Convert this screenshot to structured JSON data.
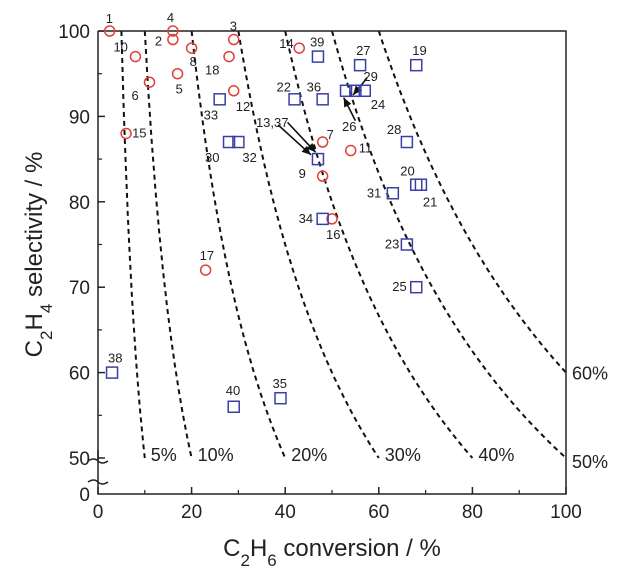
{
  "chart_data": {
    "type": "scatter",
    "title": "",
    "xlabel": "C2H6 conversion / %",
    "ylabel": "C2H4 selectivity / %",
    "xlim": [
      0,
      100
    ],
    "ylim": [
      0,
      100
    ],
    "axis_break_y": [
      0,
      50
    ],
    "grid": false,
    "x_ticks": [
      "0",
      "20",
      "40",
      "60",
      "80",
      "100"
    ],
    "y_ticks": [
      "0",
      "50",
      "60",
      "70",
      "80",
      "90",
      "100"
    ],
    "series": [
      {
        "marker": "circle",
        "color": "#e0403a",
        "points": [
          {
            "id": "1",
            "x": 2.5,
            "y": 100
          },
          {
            "id": "2",
            "x": 16,
            "y": 99
          },
          {
            "id": "3",
            "x": 29,
            "y": 99
          },
          {
            "id": "4",
            "x": 16,
            "y": 100
          },
          {
            "id": "5",
            "x": 17,
            "y": 95
          },
          {
            "id": "6",
            "x": 11,
            "y": 94
          },
          {
            "id": "7",
            "x": 48,
            "y": 87
          },
          {
            "id": "8",
            "x": 20,
            "y": 98
          },
          {
            "id": "9",
            "x": 48,
            "y": 83
          },
          {
            "id": "10",
            "x": 8,
            "y": 97
          },
          {
            "id": "11",
            "x": 54,
            "y": 86
          },
          {
            "id": "12",
            "x": 29,
            "y": 93
          },
          {
            "id": "14",
            "x": 43,
            "y": 98
          },
          {
            "id": "15",
            "x": 6,
            "y": 88
          },
          {
            "id": "16",
            "x": 50,
            "y": 78
          },
          {
            "id": "17",
            "x": 23,
            "y": 72
          },
          {
            "id": "18",
            "x": 28,
            "y": 97
          }
        ]
      },
      {
        "marker": "square",
        "color": "#3a3fa8",
        "points": [
          {
            "id": "19",
            "x": 68,
            "y": 96
          },
          {
            "id": "20",
            "x": 68,
            "y": 82
          },
          {
            "id": "21",
            "x": 69,
            "y": 82
          },
          {
            "id": "22",
            "x": 42,
            "y": 92
          },
          {
            "id": "23",
            "x": 66,
            "y": 75
          },
          {
            "id": "24",
            "x": 57,
            "y": 93
          },
          {
            "id": "25",
            "x": 68,
            "y": 70
          },
          {
            "id": "26",
            "x": 53,
            "y": 93
          },
          {
            "id": "27",
            "x": 56,
            "y": 96
          },
          {
            "id": "28",
            "x": 66,
            "y": 87
          },
          {
            "id": "29",
            "x": 55,
            "y": 93
          },
          {
            "id": "30",
            "x": 28,
            "y": 87
          },
          {
            "id": "31",
            "x": 63,
            "y": 81
          },
          {
            "id": "32",
            "x": 30,
            "y": 87
          },
          {
            "id": "33",
            "x": 26,
            "y": 92
          },
          {
            "id": "34",
            "x": 48,
            "y": 78
          },
          {
            "id": "35",
            "x": 39,
            "y": 57
          },
          {
            "id": "36",
            "x": 48,
            "y": 92
          },
          {
            "id": "13,37",
            "x": 47,
            "y": 85
          },
          {
            "id": "38",
            "x": 3,
            "y": 60
          },
          {
            "id": "39",
            "x": 47,
            "y": 97
          },
          {
            "id": "40",
            "x": 29,
            "y": 56
          }
        ]
      }
    ],
    "iso_yield_curves": [
      {
        "label": "5%",
        "yield": 5
      },
      {
        "label": "10%",
        "yield": 10
      },
      {
        "label": "20%",
        "yield": 20
      },
      {
        "label": "30%",
        "yield": 30
      },
      {
        "label": "40%",
        "yield": 40
      },
      {
        "label": "50%",
        "yield": 50
      },
      {
        "label": "60%",
        "yield": 60
      }
    ]
  }
}
